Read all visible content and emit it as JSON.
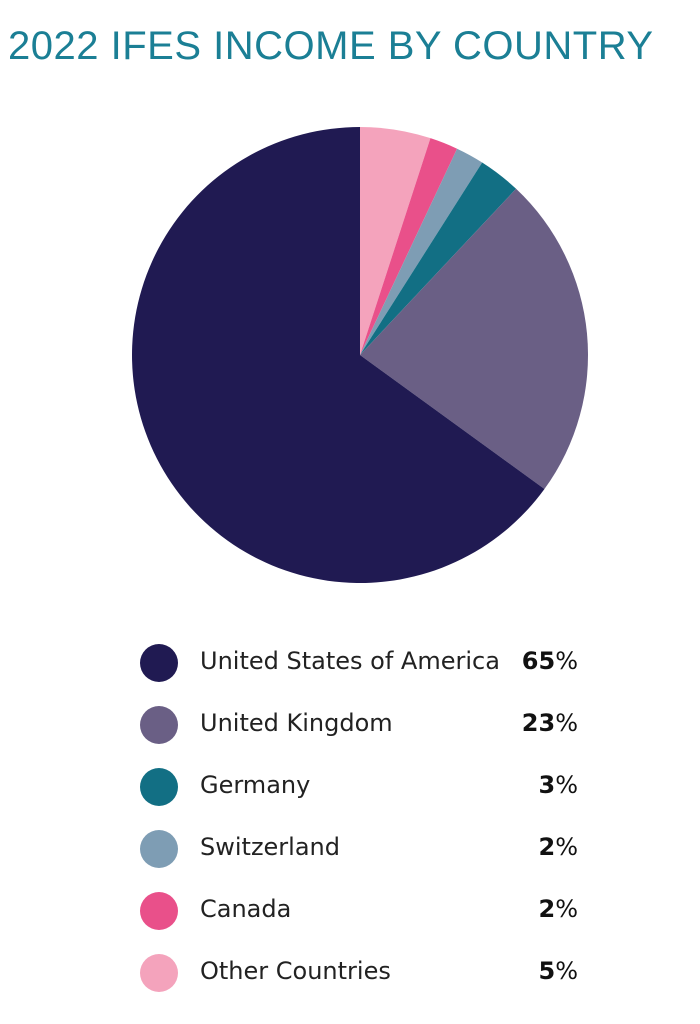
{
  "chart_data": {
    "type": "pie",
    "title": "2022 IFES INCOME BY COUNTRY",
    "slices": [
      {
        "label": "United States of America",
        "num": "65",
        "unit": "%",
        "value": 65,
        "color": "#201a52"
      },
      {
        "label": "United Kingdom",
        "num": "23",
        "unit": "%",
        "value": 23,
        "color": "#6a5f85"
      },
      {
        "label": "Germany",
        "num": "3",
        "unit": "%",
        "value": 3,
        "color": "#126f84"
      },
      {
        "label": "Switzerland",
        "num": "2",
        "unit": "%",
        "value": 2,
        "color": "#7e9db4"
      },
      {
        "label": "Canada",
        "num": "2",
        "unit": "%",
        "value": 2,
        "color": "#e9508a"
      },
      {
        "label": "Other Countries",
        "num": "5",
        "unit": "%",
        "value": 5,
        "color": "#f4a3bc"
      }
    ],
    "start": "12 o'clock",
    "direction": "clockwise, starting from Other Countries",
    "legend_position": "bottom"
  }
}
